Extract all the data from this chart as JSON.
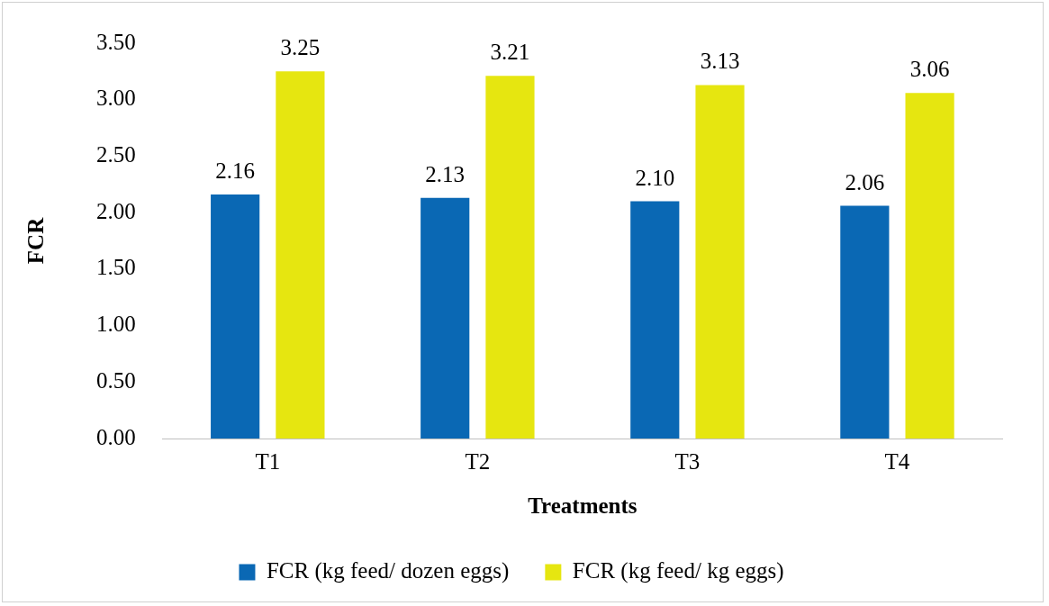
{
  "chart_data": {
    "type": "bar",
    "xlabel": "Treatments",
    "ylabel": "FCR",
    "categories": [
      "T1",
      "T2",
      "T3",
      "T4"
    ],
    "series": [
      {
        "name": "FCR (kg feed/ dozen eggs)",
        "color": "#0a68b4",
        "values": [
          2.16,
          2.13,
          2.1,
          2.06
        ],
        "value_labels": [
          "2.16",
          "2.13",
          "2.10",
          "2.06"
        ]
      },
      {
        "name": "FCR (kg feed/ kg eggs)",
        "color": "#e6e610",
        "values": [
          3.25,
          3.21,
          3.13,
          3.06
        ],
        "value_labels": [
          "3.25",
          "3.21",
          "3.13",
          "3.06"
        ]
      }
    ],
    "ylim": [
      0,
      3.5
    ],
    "yticks": [
      {
        "value": 0,
        "label": "0.00"
      },
      {
        "value": 0.5,
        "label": "0.50"
      },
      {
        "value": 1,
        "label": "1.00"
      },
      {
        "value": 1.5,
        "label": "1.50"
      },
      {
        "value": 2,
        "label": "2.00"
      },
      {
        "value": 2.5,
        "label": "2.50"
      },
      {
        "value": 3,
        "label": "3.00"
      },
      {
        "value": 3.5,
        "label": "3.50"
      }
    ],
    "grid": false,
    "legend": "bottom"
  }
}
